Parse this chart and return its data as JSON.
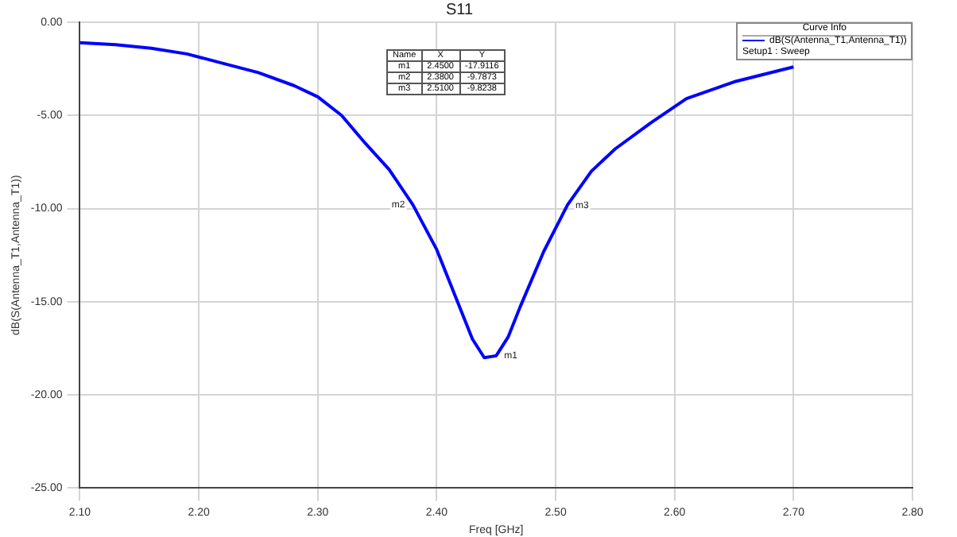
{
  "chart_data": {
    "type": "line",
    "title": "S11",
    "xlabel": "Freq [GHz]",
    "ylabel": "dB(S(Antenna_T1,Antenna_T1))",
    "legend_title": "Curve Info",
    "legend": "top right",
    "grid": true,
    "marker": "none",
    "line_style": "solid",
    "xlim": [
      2.1,
      2.8
    ],
    "ylim": [
      -25,
      0
    ],
    "xticks": [
      {
        "value": 2.1,
        "label": "2.10"
      },
      {
        "value": 2.2,
        "label": "2.20"
      },
      {
        "value": 2.3,
        "label": "2.30"
      },
      {
        "value": 2.4,
        "label": "2.40"
      },
      {
        "value": 2.5,
        "label": "2.50"
      },
      {
        "value": 2.6,
        "label": "2.60"
      },
      {
        "value": 2.7,
        "label": "2.70"
      },
      {
        "value": 2.8,
        "label": "2.80"
      }
    ],
    "yticks": [
      {
        "value": -25,
        "label": "-25.00"
      },
      {
        "value": -20,
        "label": "-20.00"
      },
      {
        "value": -15,
        "label": "-15.00"
      },
      {
        "value": -10,
        "label": "-10.00"
      },
      {
        "value": -5,
        "label": "-5.00"
      },
      {
        "value": 0,
        "label": "0.00"
      }
    ],
    "x": [
      2.1,
      2.13,
      2.16,
      2.19,
      2.22,
      2.25,
      2.28,
      2.3,
      2.32,
      2.34,
      2.36,
      2.38,
      2.4,
      2.42,
      2.43,
      2.44,
      2.45,
      2.46,
      2.47,
      2.49,
      2.51,
      2.53,
      2.55,
      2.58,
      2.61,
      2.65,
      2.7
    ],
    "series": [
      {
        "name": "dB(S(Antenna_T1,Antenna_T1))",
        "color": "#0000ff",
        "values": [
          -1.1,
          -1.2,
          -1.4,
          -1.7,
          -2.2,
          -2.7,
          -3.4,
          -4.0,
          -5.0,
          -6.5,
          -7.9,
          -9.8,
          -12.2,
          -15.4,
          -17.0,
          -18.0,
          -17.9,
          -16.9,
          -15.3,
          -12.3,
          -9.8,
          -8.0,
          -6.8,
          -5.4,
          -4.1,
          -3.2,
          -2.4
        ]
      }
    ],
    "annotations": [
      {
        "text": "m1",
        "x": 2.45,
        "y": -17.9116
      },
      {
        "text": "m2",
        "x": 2.38,
        "y": -9.7873
      },
      {
        "text": "m3",
        "x": 2.51,
        "y": -9.8238
      },
      "Name",
      "X",
      "Y",
      "m1",
      "2.4500",
      "-17.9116",
      "m2",
      "2.3800",
      "-9.7873",
      "m3",
      "2.5100",
      "-9.8238",
      "Setup1 : Sweep"
    ]
  }
}
